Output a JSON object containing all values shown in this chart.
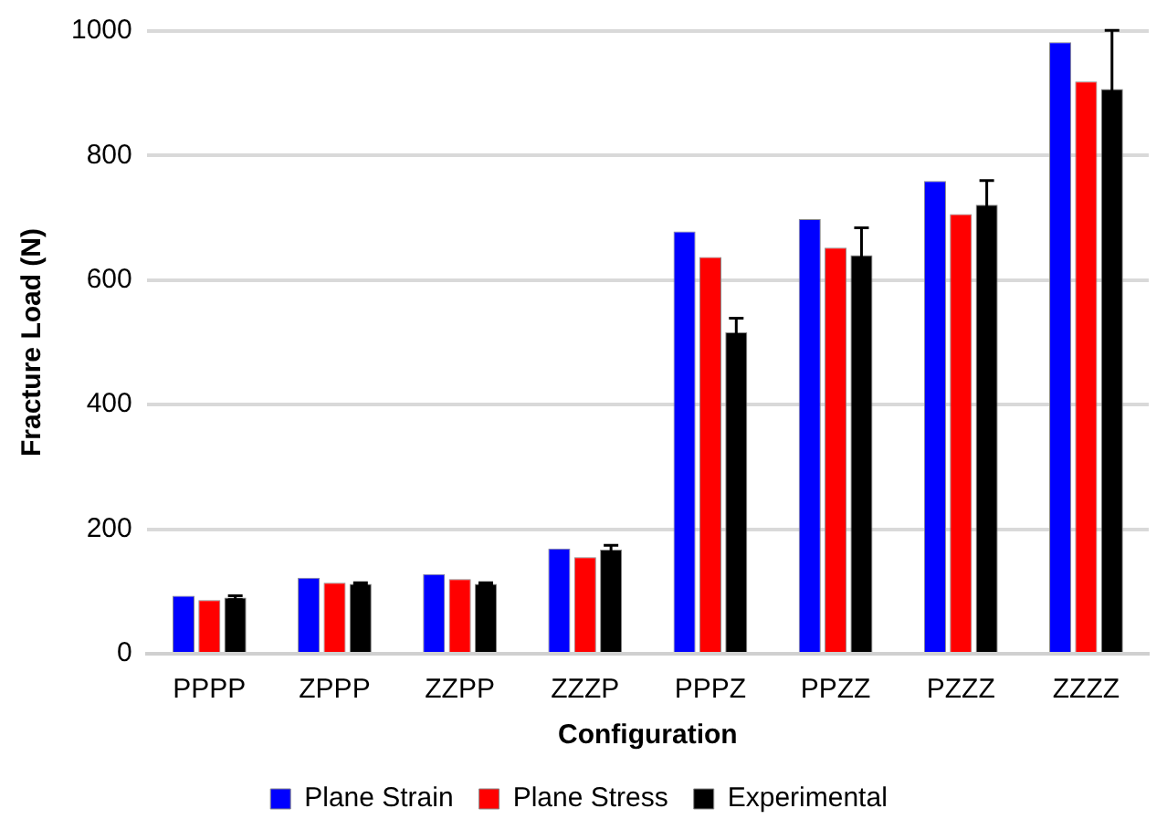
{
  "chart_data": {
    "type": "bar",
    "xlabel": "Configuration",
    "ylabel": "Fracture Load (N)",
    "categories": [
      "PPPP",
      "ZPPP",
      "ZZPP",
      "ZZZP",
      "PPPZ",
      "PPZZ",
      "PZZZ",
      "ZZZZ"
    ],
    "series": [
      {
        "name": "Plane Strain",
        "color": "#0000ff",
        "values": [
          93,
          122,
          128,
          169,
          678,
          698,
          759,
          982
        ]
      },
      {
        "name": "Plane Stress",
        "color": "#ff0000",
        "values": [
          86,
          114,
          120,
          155,
          637,
          652,
          706,
          919
        ]
      },
      {
        "name": "Experimental",
        "color": "#000000",
        "values": [
          90,
          112,
          112,
          167,
          516,
          640,
          721,
          907
        ],
        "errors": [
          3,
          2,
          2,
          7,
          23,
          44,
          39,
          94
        ]
      }
    ],
    "ylim": [
      0,
      1000
    ],
    "yticks": [
      0,
      200,
      400,
      600,
      800,
      1000
    ],
    "grid": "y",
    "legend": "bottom"
  }
}
